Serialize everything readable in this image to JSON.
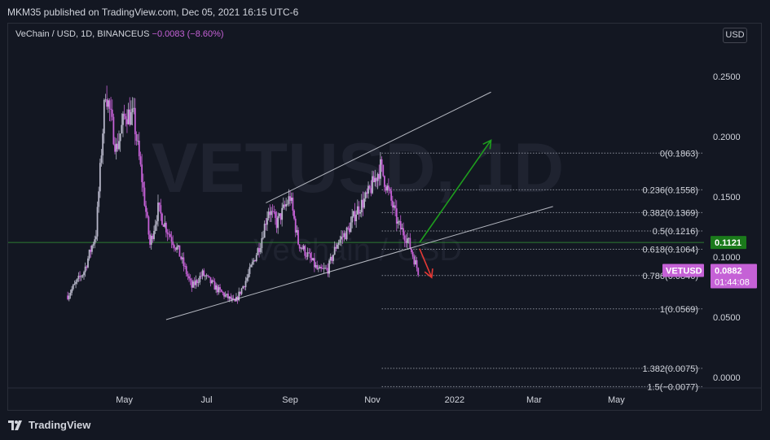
{
  "header": {
    "published": "MKM35 published on TradingView.com, Dec 05, 2021 16:15 UTC-6"
  },
  "legend": {
    "symbol": "VeChain / USD, 1D, BINANCEUS",
    "change": "−0.0083 (−8.60%)"
  },
  "currency_button": "USD",
  "watermark": {
    "main": "VETUSD, 1D",
    "sub": "VeChain / USD"
  },
  "brand": {
    "name": "TradingView",
    "icon": "tradingview-logo-icon"
  },
  "colors": {
    "background": "#131722",
    "up": "#b6b6c8",
    "down": "#c561d6",
    "green_line": "#2e7d32",
    "green_arrow": "#1e9e1e",
    "red_arrow": "#e53935",
    "channel": "#d1d4dc"
  },
  "chart_data": {
    "type": "candlestick",
    "x_axis": {
      "ticks": [
        "May",
        "Jul",
        "Sep",
        "Nov",
        "2022",
        "Mar",
        "May"
      ]
    },
    "y_axis": {
      "ticks": [
        "0.2500",
        "0.2000",
        "0.1500",
        "0.1000",
        "0.0500",
        "0.0000"
      ],
      "range": [
        -0.0077,
        0.28
      ]
    },
    "fibonacci": [
      {
        "label": "0(0.1863)",
        "value": 0.1863
      },
      {
        "label": "0.236(0.1558)",
        "value": 0.1558
      },
      {
        "label": "0.382(0.1369)",
        "value": 0.1369
      },
      {
        "label": "0.5(0.1216)",
        "value": 0.1216
      },
      {
        "label": "0.618(0.1064)",
        "value": 0.1064
      },
      {
        "label": "0.786(0.0846)",
        "value": 0.0846
      },
      {
        "label": "1(0.0569)",
        "value": 0.0569
      },
      {
        "label": "1.382(0.0075)",
        "value": 0.0075
      },
      {
        "label": "1.5(−0.0077)",
        "value": -0.0077
      }
    ],
    "horizontal_line": {
      "label": "0.1121",
      "value": 0.1121
    },
    "last_price": {
      "symbol": "VETUSD",
      "value": "0.0882",
      "countdown": "01:44:08"
    },
    "price_path": [
      [
        "2021-03-20",
        0.068
      ],
      [
        "2021-04-01",
        0.088
      ],
      [
        "2021-04-10",
        0.12
      ],
      [
        "2021-04-17",
        0.24
      ],
      [
        "2021-04-25",
        0.19
      ],
      [
        "2021-05-02",
        0.22
      ],
      [
        "2021-05-08",
        0.215
      ],
      [
        "2021-05-14",
        0.165
      ],
      [
        "2021-05-20",
        0.11
      ],
      [
        "2021-05-26",
        0.14
      ],
      [
        "2021-06-02",
        0.122
      ],
      [
        "2021-06-10",
        0.105
      ],
      [
        "2021-06-20",
        0.075
      ],
      [
        "2021-06-28",
        0.086
      ],
      [
        "2021-07-10",
        0.072
      ],
      [
        "2021-07-22",
        0.062
      ],
      [
        "2021-08-01",
        0.085
      ],
      [
        "2021-08-10",
        0.112
      ],
      [
        "2021-08-16",
        0.14
      ],
      [
        "2021-08-22",
        0.128
      ],
      [
        "2021-09-01",
        0.15
      ],
      [
        "2021-09-07",
        0.112
      ],
      [
        "2021-09-15",
        0.1
      ],
      [
        "2021-09-22",
        0.088
      ],
      [
        "2021-09-29",
        0.09
      ],
      [
        "2021-10-06",
        0.112
      ],
      [
        "2021-10-14",
        0.122
      ],
      [
        "2021-10-20",
        0.138
      ],
      [
        "2021-10-28",
        0.15
      ],
      [
        "2021-11-07",
        0.175
      ],
      [
        "2021-11-14",
        0.15
      ],
      [
        "2021-11-20",
        0.127
      ],
      [
        "2021-11-27",
        0.115
      ],
      [
        "2021-12-05",
        0.088
      ]
    ],
    "trendlines": [
      {
        "name": "channel-upper",
        "from": [
          "2021-08-14",
          0.145
        ],
        "to": [
          "2022-01-28",
          0.237
        ]
      },
      {
        "name": "channel-lower",
        "from": [
          "2021-06-01",
          0.048
        ],
        "to": [
          "2022-03-15",
          0.142
        ]
      }
    ],
    "arrows": [
      {
        "name": "green-arrow",
        "from": [
          "2021-12-06",
          0.112
        ],
        "to": [
          "2022-01-28",
          0.197
        ]
      },
      {
        "name": "red-arrow",
        "from": [
          "2021-12-06",
          0.107
        ],
        "to": [
          "2021-12-15",
          0.083
        ]
      }
    ]
  }
}
